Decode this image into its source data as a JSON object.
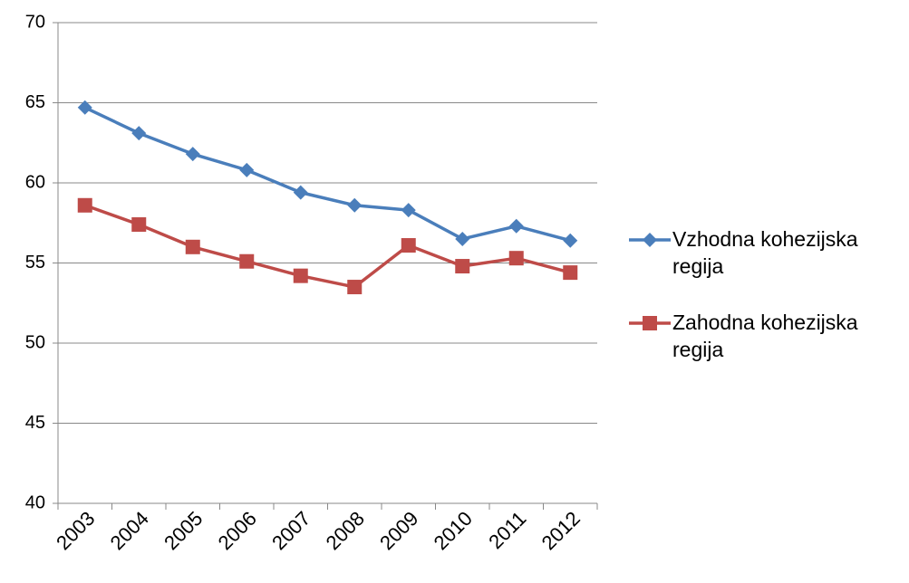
{
  "chart_data": {
    "type": "line",
    "categories": [
      "2003",
      "2004",
      "2005",
      "2006",
      "2007",
      "2008",
      "2009",
      "2010",
      "2011",
      "2012"
    ],
    "series": [
      {
        "name": "Vzhodna kohezijska regija",
        "color": "#4a7ebb",
        "marker": "diamond",
        "values": [
          64.7,
          63.1,
          61.8,
          60.8,
          59.4,
          58.6,
          58.3,
          56.5,
          57.3,
          56.4
        ]
      },
      {
        "name": "Zahodna kohezijska regija",
        "color": "#be4b48",
        "marker": "square",
        "values": [
          58.6,
          57.4,
          56.0,
          55.1,
          54.2,
          53.5,
          56.1,
          54.8,
          55.3,
          54.4
        ]
      }
    ],
    "ylim": [
      40,
      70
    ],
    "yticks": [
      40,
      45,
      50,
      55,
      60,
      65,
      70
    ],
    "grid": true,
    "legend": "right"
  }
}
